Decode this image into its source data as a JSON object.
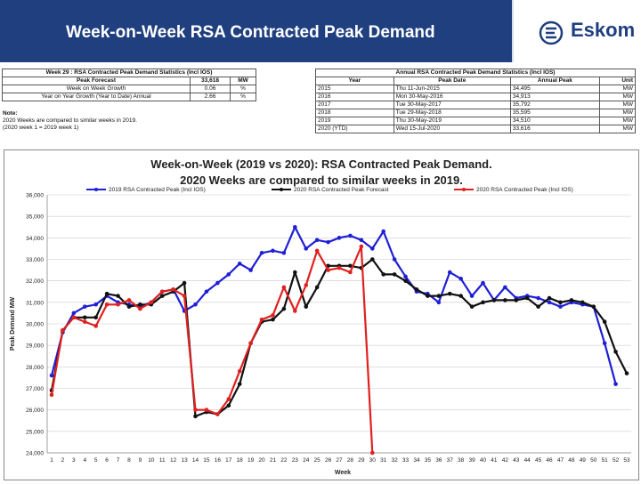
{
  "header": {
    "title": "Week-on-Week RSA Contracted Peak Demand",
    "logo_text": "Eskom"
  },
  "left_table": {
    "title": "Week 29 : RSA Contracted Peak Demand Statistics (Incl IOS)",
    "headers": [
      "Peak Forecast",
      "33,618",
      "MW"
    ],
    "rows": [
      [
        "Week on Week Growth",
        "0.06",
        "%"
      ],
      [
        "Year on Year Growth (Year to Date) Annual",
        "2.66",
        "%"
      ]
    ]
  },
  "notes": {
    "label": "Note:",
    "line1": "2020 Weeks are compared to similar weeks in 2019.",
    "line2": "(2020 week 1 = 2019 week 1)"
  },
  "right_table": {
    "title": "Annual RSA Contracted Peak Demand Statistics (Incl IOS)",
    "headers": [
      "Year",
      "Peak Date",
      "Annual Peak",
      "Unit"
    ],
    "rows": [
      [
        "2015",
        "Thu 11-Jun-2015",
        "34,495",
        "MW"
      ],
      [
        "2016",
        "Mon 30-May-2016",
        "34,913",
        "MW"
      ],
      [
        "2017",
        "Tue 30-May-2017",
        "35,792",
        "MW"
      ],
      [
        "2018",
        "Tue 29-May-2018",
        "35,595",
        "MW"
      ],
      [
        "2019",
        "Thu 30-May-2019",
        "34,510",
        "MW"
      ],
      [
        "2020 (YTD)",
        "Wed 15-Jul-2020",
        "33,616",
        "MW"
      ]
    ]
  },
  "chart_data": {
    "type": "line",
    "title_line1": "Week-on-Week (2019 vs 2020): RSA Contracted Peak Demand.",
    "title_line2": "2020 Weeks are compared to similar weeks in 2019.",
    "xlabel": "Week",
    "ylabel": "Peak Demand MW",
    "ylim": [
      24000,
      36000
    ],
    "y_ticks": [
      "24,000",
      "25,000",
      "26,000",
      "27,000",
      "28,000",
      "29,000",
      "30,000",
      "31,000",
      "32,000",
      "33,000",
      "34,000",
      "35,000",
      "36,000"
    ],
    "categories": [
      "1",
      "2",
      "3",
      "4",
      "5",
      "6",
      "7",
      "8",
      "9",
      "10",
      "11",
      "12",
      "13",
      "14",
      "15",
      "16",
      "17",
      "18",
      "19",
      "20",
      "21",
      "22",
      "23",
      "24",
      "25",
      "26",
      "27",
      "28",
      "29",
      "30",
      "31",
      "32",
      "33",
      "34",
      "35",
      "36",
      "37",
      "38",
      "39",
      "40",
      "41",
      "42",
      "43",
      "44",
      "45",
      "46",
      "47",
      "48",
      "49",
      "50",
      "51",
      "52",
      "53"
    ],
    "series": [
      {
        "name": "2019 RSA Contracted Peak (Incl IOS)",
        "color": "#1f1fd6",
        "values": [
          27600,
          29600,
          30500,
          30800,
          30900,
          31300,
          31000,
          30900,
          30800,
          31000,
          31500,
          31600,
          30600,
          30900,
          31500,
          31900,
          32300,
          32800,
          32500,
          33300,
          33400,
          33300,
          34500,
          33500,
          33900,
          33800,
          34000,
          34100,
          33900,
          33500,
          34300,
          33000,
          32200,
          31500,
          31400,
          31000,
          32400,
          32100,
          31300,
          31900,
          31100,
          31700,
          31200,
          31300,
          31200,
          31000,
          30800,
          31000,
          30900,
          30800,
          29100,
          27200,
          null
        ]
      },
      {
        "name": "2020 RSA Contracted Peak Forecast",
        "color": "#111111",
        "values": [
          26900,
          29700,
          30300,
          30300,
          30300,
          31400,
          31300,
          30800,
          30900,
          30900,
          31300,
          31500,
          31900,
          25700,
          25900,
          25800,
          26200,
          27200,
          29100,
          30100,
          30200,
          30700,
          32400,
          30800,
          31700,
          32700,
          32700,
          32700,
          32600,
          33000,
          32300,
          32300,
          32000,
          31600,
          31300,
          31300,
          31400,
          31300,
          30800,
          31000,
          31100,
          31100,
          31100,
          31200,
          30800,
          31200,
          31000,
          31100,
          31000,
          30800,
          30100,
          28700,
          27700
        ]
      },
      {
        "name": "2020 RSA Contracted Peak (Incl IOS)",
        "color": "#e02020",
        "values": [
          26700,
          29700,
          30300,
          30100,
          29900,
          30900,
          30900,
          31100,
          30700,
          31000,
          31500,
          31600,
          31300,
          26000,
          26000,
          25800,
          26500,
          27800,
          29100,
          30200,
          30400,
          31700,
          30600,
          31800,
          33400,
          32500,
          32600,
          32400,
          33600,
          24000,
          null,
          null,
          null,
          null,
          null,
          null,
          null,
          null,
          null,
          null,
          null,
          null,
          null,
          null,
          null,
          null,
          null,
          null,
          null,
          null,
          null,
          null,
          null
        ]
      }
    ],
    "legend_position": "top"
  }
}
